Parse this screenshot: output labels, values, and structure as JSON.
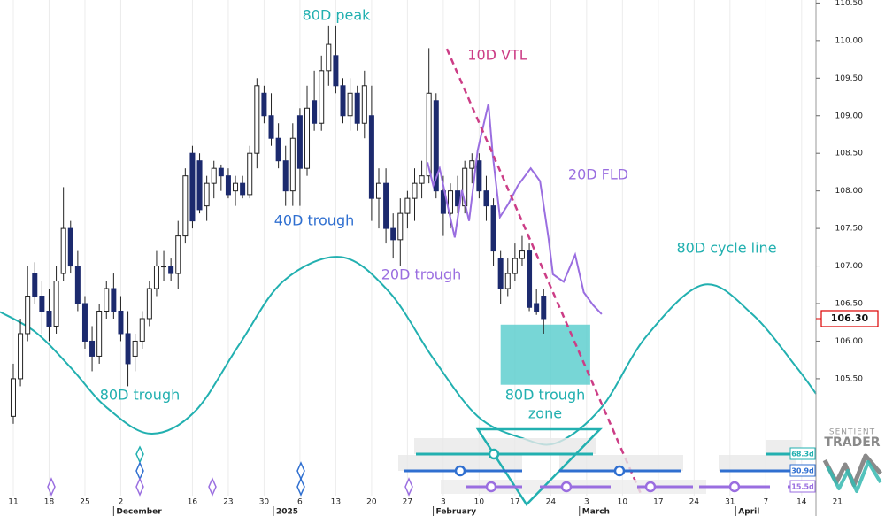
{
  "chart_data": {
    "type": "candlestick",
    "x": [
      0,
      1,
      2,
      3,
      4,
      5,
      6,
      7,
      8,
      9,
      10,
      11,
      12,
      13,
      14,
      15,
      16,
      17,
      18,
      19,
      20,
      21,
      22,
      23,
      24,
      25,
      26,
      27,
      28,
      29,
      30,
      31,
      32,
      33,
      34,
      35,
      36,
      37,
      38,
      39,
      40,
      41,
      42,
      43,
      44,
      45,
      46,
      47,
      48,
      49,
      50,
      51,
      52,
      53,
      54,
      55,
      56,
      57,
      58,
      59,
      60,
      61,
      62,
      63,
      64,
      65,
      66,
      67,
      68,
      69,
      70,
      71,
      72,
      73,
      74
    ],
    "open": [
      105.0,
      105.5,
      106.1,
      106.9,
      106.6,
      106.4,
      106.2,
      106.9,
      107.5,
      107.0,
      106.5,
      106.0,
      105.8,
      106.4,
      106.7,
      106.4,
      106.1,
      105.8,
      106.0,
      106.3,
      106.7,
      107.0,
      107.0,
      106.9,
      107.4,
      108.5,
      108.4,
      107.8,
      108.1,
      108.3,
      108.2,
      108.0,
      108.1,
      107.95,
      108.5,
      109.3,
      109.0,
      108.7,
      108.4,
      108.0,
      109.0,
      108.3,
      109.2,
      108.9,
      109.6,
      109.8,
      109.4,
      109.0,
      109.3,
      108.9,
      109.0,
      107.9,
      108.1,
      107.5,
      107.35,
      107.7,
      107.9,
      108.1,
      108.2,
      109.2,
      108.0,
      107.7,
      108.0,
      107.8,
      108.3,
      108.4,
      108.0,
      107.8,
      107.1,
      106.7,
      106.9,
      107.1,
      107.2,
      106.5,
      106.6
    ],
    "high": [
      105.7,
      106.3,
      107.0,
      107.05,
      106.8,
      106.7,
      107.0,
      108.05,
      107.6,
      107.2,
      106.6,
      106.2,
      106.5,
      106.8,
      106.9,
      106.6,
      106.4,
      106.1,
      106.4,
      106.8,
      107.2,
      107.2,
      107.1,
      107.6,
      108.3,
      108.6,
      108.5,
      108.2,
      108.4,
      108.35,
      108.3,
      108.2,
      108.2,
      108.6,
      109.5,
      109.4,
      109.3,
      108.9,
      108.6,
      108.9,
      109.1,
      109.4,
      109.6,
      109.8,
      110.2,
      110.2,
      109.5,
      109.5,
      109.4,
      109.6,
      109.4,
      108.3,
      108.3,
      107.7,
      107.9,
      108.0,
      108.3,
      108.4,
      109.9,
      109.3,
      108.2,
      108.1,
      108.2,
      108.4,
      108.5,
      108.5,
      108.2,
      107.9,
      107.2,
      107.1,
      107.3,
      107.4,
      107.3,
      106.7,
      106.7
    ],
    "low": [
      104.9,
      105.4,
      106.0,
      106.5,
      106.1,
      106.0,
      106.1,
      106.8,
      106.9,
      106.4,
      105.9,
      105.6,
      105.7,
      106.3,
      106.3,
      106.0,
      105.4,
      105.6,
      105.9,
      106.2,
      106.6,
      106.8,
      106.8,
      106.7,
      107.3,
      107.5,
      107.7,
      107.6,
      107.9,
      108.0,
      107.9,
      107.8,
      107.9,
      107.9,
      108.3,
      108.9,
      108.6,
      108.3,
      107.8,
      107.8,
      107.8,
      108.2,
      108.8,
      108.8,
      109.4,
      109.3,
      108.9,
      108.8,
      108.8,
      108.7,
      107.6,
      107.5,
      107.3,
      107.1,
      107.0,
      107.5,
      107.6,
      107.9,
      108.1,
      107.9,
      107.4,
      107.5,
      107.7,
      107.7,
      108.1,
      107.9,
      107.6,
      107.0,
      106.5,
      106.6,
      106.8,
      107.0,
      106.4,
      106.35,
      106.1
    ],
    "close": [
      105.5,
      106.1,
      106.6,
      106.6,
      106.4,
      106.2,
      106.8,
      107.5,
      107.0,
      106.5,
      106.0,
      105.8,
      106.4,
      106.7,
      106.4,
      106.1,
      105.7,
      106.0,
      106.3,
      106.7,
      107.0,
      107.0,
      106.9,
      107.4,
      108.2,
      107.6,
      107.75,
      108.1,
      108.3,
      108.2,
      107.95,
      108.1,
      107.95,
      108.5,
      109.4,
      109.0,
      108.7,
      108.4,
      108.0,
      108.7,
      108.3,
      109.1,
      108.9,
      109.6,
      109.95,
      109.4,
      109.0,
      109.3,
      108.9,
      109.4,
      107.9,
      108.1,
      107.5,
      107.35,
      107.7,
      107.9,
      108.1,
      108.2,
      109.3,
      108.0,
      107.7,
      108.0,
      107.8,
      108.3,
      108.4,
      108.0,
      107.8,
      107.2,
      106.7,
      106.9,
      107.1,
      107.2,
      106.45,
      106.4,
      106.3
    ],
    "up_color": "#ffffff",
    "down_color": "#1c2a6e",
    "xlim": [
      -1.85,
      112
    ],
    "ylim": [
      103.85,
      110.54
    ],
    "yticks": [
      {
        "value": 105.5,
        "label": "105.50"
      },
      {
        "value": 106.0,
        "label": "106.00"
      },
      {
        "value": 106.5,
        "label": "106.50"
      },
      {
        "value": 107.0,
        "label": "107.00"
      },
      {
        "value": 107.5,
        "label": "107.50"
      },
      {
        "value": 108.0,
        "label": "108.00"
      },
      {
        "value": 108.5,
        "label": "108.50"
      },
      {
        "value": 109.0,
        "label": "109.00"
      },
      {
        "value": 109.5,
        "label": "109.50"
      },
      {
        "value": 110.0,
        "label": "110.00"
      },
      {
        "value": 110.5,
        "label": "110.50"
      }
    ],
    "xticks": [
      {
        "value": 0,
        "label": "11"
      },
      {
        "value": 5,
        "label": "18"
      },
      {
        "value": 10,
        "label": "25"
      },
      {
        "value": 15,
        "label": "2"
      },
      {
        "value": 25,
        "label": "16"
      },
      {
        "value": 30,
        "label": "23"
      },
      {
        "value": 35,
        "label": "30"
      },
      {
        "value": 40,
        "label": "6"
      },
      {
        "value": 45,
        "label": "13"
      },
      {
        "value": 50,
        "label": "20"
      },
      {
        "value": 55,
        "label": "27"
      },
      {
        "value": 60,
        "label": "3"
      },
      {
        "value": 65,
        "label": "10"
      },
      {
        "value": 70,
        "label": "17"
      },
      {
        "value": 75,
        "label": "24"
      },
      {
        "value": 80,
        "label": "3"
      },
      {
        "value": 85,
        "label": "10"
      },
      {
        "value": 90,
        "label": "17"
      },
      {
        "value": 95,
        "label": "24"
      },
      {
        "value": 100,
        "label": "31"
      },
      {
        "value": 105,
        "label": "7"
      },
      {
        "value": 110,
        "label": "14"
      },
      {
        "value": 115,
        "label": "21"
      }
    ],
    "month_ticks": [
      {
        "value": 14,
        "label": "December"
      },
      {
        "value": 36.3,
        "label": "2025"
      },
      {
        "value": 58.6,
        "label": "February"
      },
      {
        "value": 79,
        "label": "March"
      },
      {
        "value": 100.8,
        "label": "April"
      }
    ],
    "grid": true,
    "lines": [
      {
        "name": "80D cycle line",
        "color": "#22b0b0",
        "smooth": true,
        "dashed": false,
        "x": [
          -1.85,
          3.1,
          8,
          13,
          19.1,
          25.3,
          31.5,
          37.7,
          45.7,
          52.5,
          58.6,
          64.8,
          71,
          75.9,
          82.1,
          88.3,
          96.3,
          103.1,
          109.3,
          112
        ],
        "values": [
          106.39,
          106.12,
          105.65,
          105.12,
          104.77,
          105.06,
          105.95,
          106.8,
          107.12,
          106.65,
          105.77,
          105.0,
          104.71,
          104.65,
          105.12,
          106.06,
          106.75,
          106.36,
          105.65,
          105.3
        ]
      },
      {
        "name": "20D FLD",
        "color": "#9a6ee0",
        "smooth": false,
        "dashed": false,
        "x": [
          57.8,
          58.6,
          59.5,
          60.5,
          61.6,
          62.6,
          63.6,
          64.8,
          66.3,
          66.9,
          67.9,
          69.1,
          70.4,
          72.2,
          73.5,
          74.7,
          75.3,
          76.8,
          78.4,
          79.6,
          80.9,
          82.1
        ],
        "values": [
          108.38,
          108.07,
          108.3,
          107.85,
          107.38,
          108.01,
          107.6,
          108.54,
          109.16,
          108.48,
          107.65,
          107.83,
          108.07,
          108.3,
          108.13,
          107.36,
          106.89,
          106.79,
          107.15,
          106.65,
          106.48,
          106.36
        ]
      },
      {
        "name": "10D VTL",
        "color": "#cc3d86",
        "smooth": false,
        "dashed": true,
        "x": [
          60.5,
          87.7
        ],
        "values": [
          109.89,
          103.94
        ]
      }
    ],
    "zone": {
      "label_lines": [
        "80D trough",
        "zone"
      ],
      "color": "#5fcfcf",
      "start": 68.0,
      "end": 80.5,
      "low": 105.42,
      "high": 106.22
    },
    "annotations": [
      "80D peak",
      "40D trough",
      "20D trough",
      "80D trough"
    ],
    "last_price": {
      "value": 106.3,
      "label": "106.30"
    },
    "cycle_tags": [
      "68.3d",
      "30.9d",
      "15.5d"
    ],
    "logo": [
      "SENTIENT",
      "TRADER"
    ]
  }
}
